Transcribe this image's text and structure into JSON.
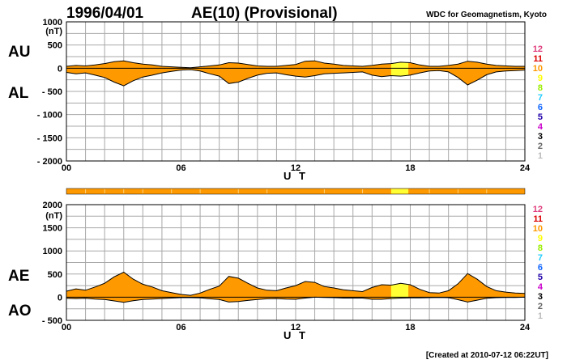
{
  "header": {
    "date": "1996/04/01",
    "title": "AE(10) (Provisional)",
    "organization": "WDC for Geomagnetism, Kyoto"
  },
  "footer": {
    "created": "[Created at 2010-07-12 06:22UT]"
  },
  "colors": {
    "fill_default": "#ff9900",
    "fill_highlight": "#ffff33",
    "grid": "#a8a8a8"
  },
  "legend": {
    "entries": [
      {
        "label": "12",
        "color": "#e0407f"
      },
      {
        "label": "11",
        "color": "#dd0000"
      },
      {
        "label": "10",
        "color": "#ff9900"
      },
      {
        "label": "9",
        "color": "#ffff00"
      },
      {
        "label": "8",
        "color": "#99ee00"
      },
      {
        "label": "7",
        "color": "#22ccff"
      },
      {
        "label": "6",
        "color": "#1166ff"
      },
      {
        "label": "5",
        "color": "#2200aa"
      },
      {
        "label": "4",
        "color": "#cc00cc"
      },
      {
        "label": "3",
        "color": "#000000"
      },
      {
        "label": "2",
        "color": "#666666"
      },
      {
        "label": "1",
        "color": "#bbbbbb"
      }
    ]
  },
  "chart_data": [
    {
      "type": "area",
      "name": "AU/AL",
      "upper_label": "AU",
      "lower_label": "AL",
      "unit": "(nT)",
      "xlabel": "U T",
      "xlim": [
        0,
        24
      ],
      "ylim": [
        -2000,
        1000
      ],
      "x_ticks": [
        0,
        6,
        12,
        18,
        24
      ],
      "x_tick_labels": [
        "00",
        "06",
        "12",
        "18",
        "24"
      ],
      "y_ticks": [
        1000,
        500,
        0,
        -500,
        -1000,
        -1500,
        -2000
      ],
      "y_tick_labels": [
        "1000",
        "500",
        "0",
        "- 500",
        "- 1000",
        "- 1500",
        "- 2000"
      ],
      "grid": true,
      "highlight_range": [
        17.0,
        17.9
      ],
      "x": [
        0,
        0.5,
        1,
        1.5,
        2,
        2.5,
        3,
        3.5,
        4,
        4.5,
        5,
        5.5,
        6,
        6.5,
        7,
        7.5,
        8,
        8.5,
        9,
        9.5,
        10,
        10.5,
        11,
        11.5,
        12,
        12.5,
        13,
        13.5,
        14,
        14.5,
        15,
        15.5,
        16,
        16.5,
        17,
        17.5,
        18,
        18.5,
        19,
        19.5,
        20,
        20.5,
        21,
        21.5,
        22,
        22.5,
        23,
        23.5,
        24
      ],
      "series": [
        {
          "name": "AU",
          "values": [
            40,
            60,
            50,
            70,
            100,
            140,
            160,
            120,
            90,
            70,
            40,
            30,
            20,
            10,
            30,
            50,
            70,
            120,
            110,
            80,
            50,
            40,
            40,
            60,
            80,
            150,
            160,
            110,
            90,
            60,
            50,
            40,
            60,
            90,
            100,
            130,
            120,
            70,
            40,
            40,
            60,
            90,
            150,
            130,
            90,
            60,
            50,
            40,
            40
          ]
        },
        {
          "name": "AL",
          "values": [
            -90,
            -120,
            -100,
            -150,
            -200,
            -300,
            -380,
            -270,
            -190,
            -150,
            -100,
            -70,
            -40,
            -30,
            -60,
            -120,
            -170,
            -330,
            -300,
            -220,
            -150,
            -110,
            -100,
            -140,
            -170,
            -190,
            -160,
            -120,
            -110,
            -100,
            -90,
            -80,
            -150,
            -180,
            -160,
            -170,
            -150,
            -100,
            -60,
            -50,
            -80,
            -200,
            -360,
            -260,
            -140,
            -80,
            -60,
            -50,
            -40
          ]
        }
      ]
    },
    {
      "type": "area",
      "name": "AE/AO",
      "upper_label": "AE",
      "lower_label": "AO",
      "unit": "(nT)",
      "xlabel": "U T",
      "xlim": [
        0,
        24
      ],
      "ylim": [
        -500,
        2000
      ],
      "x_ticks": [
        0,
        6,
        12,
        18,
        24
      ],
      "x_tick_labels": [
        "00",
        "06",
        "12",
        "18",
        "24"
      ],
      "y_ticks": [
        2000,
        1500,
        1000,
        500,
        0,
        -500
      ],
      "y_tick_labels": [
        "2000",
        "1500",
        "1000",
        "500",
        "0",
        "- 500"
      ],
      "grid": true,
      "highlight_range": [
        17.0,
        17.9
      ],
      "x": [
        0,
        0.5,
        1,
        1.5,
        2,
        2.5,
        3,
        3.5,
        4,
        4.5,
        5,
        5.5,
        6,
        6.5,
        7,
        7.5,
        8,
        8.5,
        9,
        9.5,
        10,
        10.5,
        11,
        11.5,
        12,
        12.5,
        13,
        13.5,
        14,
        14.5,
        15,
        15.5,
        16,
        16.5,
        17,
        17.5,
        18,
        18.5,
        19,
        19.5,
        20,
        20.5,
        21,
        21.5,
        22,
        22.5,
        23,
        23.5,
        24
      ],
      "series": [
        {
          "name": "AE",
          "values": [
            130,
            180,
            150,
            220,
            300,
            440,
            540,
            390,
            280,
            220,
            140,
            100,
            60,
            40,
            90,
            170,
            240,
            450,
            410,
            300,
            200,
            150,
            140,
            200,
            250,
            340,
            320,
            230,
            200,
            160,
            140,
            120,
            210,
            270,
            260,
            300,
            270,
            170,
            100,
            90,
            140,
            290,
            510,
            390,
            230,
            140,
            110,
            90,
            80
          ]
        },
        {
          "name": "AO",
          "values": [
            -25,
            -30,
            -25,
            -40,
            -50,
            -80,
            -110,
            -75,
            -50,
            -40,
            -30,
            -20,
            -10,
            -10,
            -15,
            -35,
            -50,
            -105,
            -95,
            -70,
            -50,
            -35,
            -30,
            -40,
            -45,
            -20,
            0,
            -5,
            -10,
            -20,
            -20,
            -20,
            -45,
            -45,
            -30,
            -20,
            -15,
            -15,
            -10,
            -5,
            -10,
            -55,
            -105,
            -65,
            -25,
            -10,
            -5,
            -5,
            0
          ]
        }
      ]
    }
  ]
}
